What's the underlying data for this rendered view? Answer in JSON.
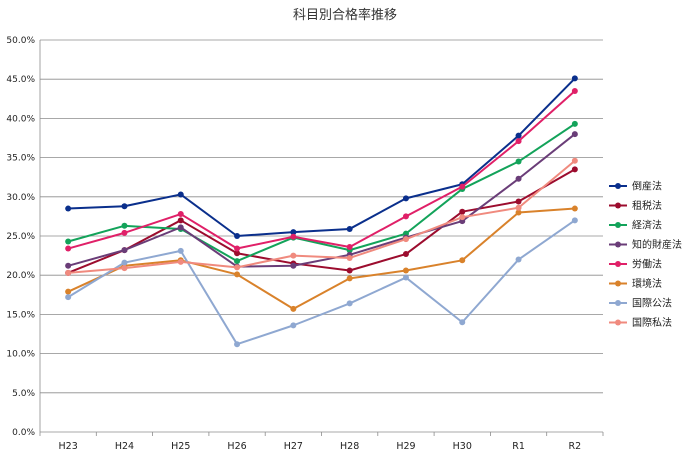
{
  "chart_data": {
    "type": "line",
    "title": "科目別合格率推移",
    "xlabel": "",
    "ylabel": "",
    "categories": [
      "H23",
      "H24",
      "H25",
      "H26",
      "H27",
      "H28",
      "H29",
      "H30",
      "R1",
      "R2"
    ],
    "ylim": [
      0,
      50
    ],
    "yticks": [
      "0.0%",
      "5.0%",
      "10.0%",
      "15.0%",
      "20.0%",
      "25.0%",
      "30.0%",
      "35.0%",
      "40.0%",
      "45.0%",
      "50.0%"
    ],
    "grid": "horizontal",
    "legend_position": "right",
    "series": [
      {
        "name": "倒産法",
        "color": "#0a2f8c",
        "values": [
          28.5,
          28.8,
          30.3,
          25.0,
          25.5,
          25.9,
          29.8,
          31.6,
          37.8,
          45.1
        ]
      },
      {
        "name": "租税法",
        "color": "#9c0c2e",
        "values": [
          20.3,
          23.2,
          27.0,
          22.8,
          21.5,
          20.6,
          22.7,
          28.1,
          29.4,
          33.5
        ]
      },
      {
        "name": "経済法",
        "color": "#13a35a",
        "values": [
          24.3,
          26.3,
          25.9,
          21.8,
          24.8,
          23.2,
          25.3,
          31.0,
          34.5,
          39.3
        ]
      },
      {
        "name": "知的財産法",
        "color": "#6a3d78",
        "values": [
          21.2,
          23.2,
          26.1,
          21.1,
          21.2,
          22.6,
          24.8,
          26.9,
          32.3,
          38.0
        ]
      },
      {
        "name": "労働法",
        "color": "#e02068",
        "values": [
          23.4,
          25.4,
          27.8,
          23.4,
          24.9,
          23.6,
          27.5,
          31.3,
          37.1,
          43.5
        ]
      },
      {
        "name": "環境法",
        "color": "#d9822b",
        "values": [
          17.9,
          21.2,
          21.9,
          20.1,
          15.7,
          19.6,
          20.6,
          21.9,
          28.0,
          28.5
        ]
      },
      {
        "name": "国際公法",
        "color": "#8fa8d1",
        "values": [
          17.2,
          21.6,
          23.1,
          11.2,
          13.6,
          16.4,
          19.7,
          14.0,
          22.0,
          27.0
        ]
      },
      {
        "name": "国際私法",
        "color": "#f08a7e",
        "values": [
          20.3,
          20.9,
          21.7,
          21.0,
          22.5,
          22.2,
          24.6,
          27.4,
          28.6,
          34.6
        ]
      }
    ]
  }
}
